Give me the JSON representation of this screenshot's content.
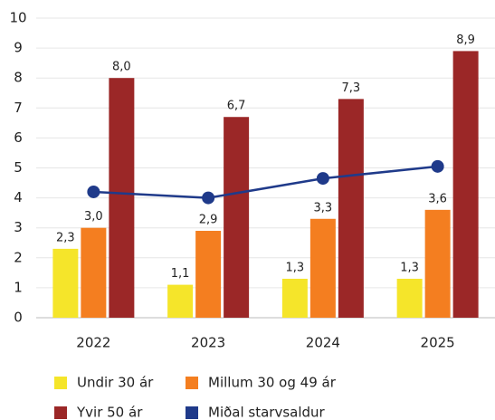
{
  "chart_data": {
    "type": "bar",
    "categories": [
      "2022",
      "2023",
      "2024",
      "2025"
    ],
    "series": [
      {
        "name": "Undir 30 ár",
        "color": "#f5e52a",
        "values": [
          2.3,
          1.1,
          1.3,
          1.3
        ],
        "value_labels": [
          "2,3",
          "1,1",
          "1,3",
          "1,3"
        ]
      },
      {
        "name": "Millum 30 og 49 ár",
        "color": "#f47e20",
        "values": [
          3.0,
          2.9,
          3.3,
          3.6
        ],
        "value_labels": [
          "3,0",
          "2,9",
          "3,3",
          "3,6"
        ]
      },
      {
        "name": "Yvir 50 ár",
        "color": "#9b2727",
        "values": [
          8.0,
          6.7,
          7.3,
          8.9
        ],
        "value_labels": [
          "8,0",
          "6,7",
          "7,3",
          "8,9"
        ]
      },
      {
        "name": "Miðal starvsaldur",
        "color": "#1f3a8a",
        "type": "line",
        "values": [
          4.2,
          4.0,
          4.65,
          5.05
        ]
      }
    ],
    "ylim": [
      0,
      10
    ],
    "yticks": [
      0,
      1,
      2,
      3,
      4,
      5,
      6,
      7,
      8,
      9,
      10
    ],
    "grid": true
  }
}
